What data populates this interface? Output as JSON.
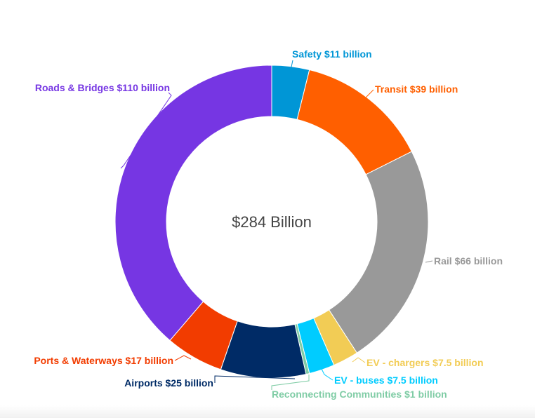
{
  "chart_data": {
    "type": "pie",
    "variant": "donut",
    "center_label": "$284 Billion",
    "legend": "none",
    "slices": [
      {
        "label": "Safety $11 billion",
        "value": 11,
        "color": "#0096d6"
      },
      {
        "label": "Transit $39 billion",
        "value": 39,
        "color": "#ff5f00"
      },
      {
        "label": "Rail $66 billion",
        "value": 66,
        "color": "#999999"
      },
      {
        "label": "EV - chargers $7.5 billion",
        "value": 7.5,
        "color": "#f2cc55"
      },
      {
        "label": "EV - buses $7.5 billion",
        "value": 7.5,
        "color": "#00ccff"
      },
      {
        "label": "Reconnecting Communities $1 billion",
        "value": 1,
        "color": "#7fcca5"
      },
      {
        "label": "Airports $25 billion",
        "value": 25,
        "color": "#002b66"
      },
      {
        "label": "Ports & Waterways $17 billion",
        "value": 17,
        "color": "#f23c00"
      },
      {
        "label": "Roads & Bridges $110 billion",
        "value": 110,
        "color": "#7636e3"
      }
    ]
  }
}
